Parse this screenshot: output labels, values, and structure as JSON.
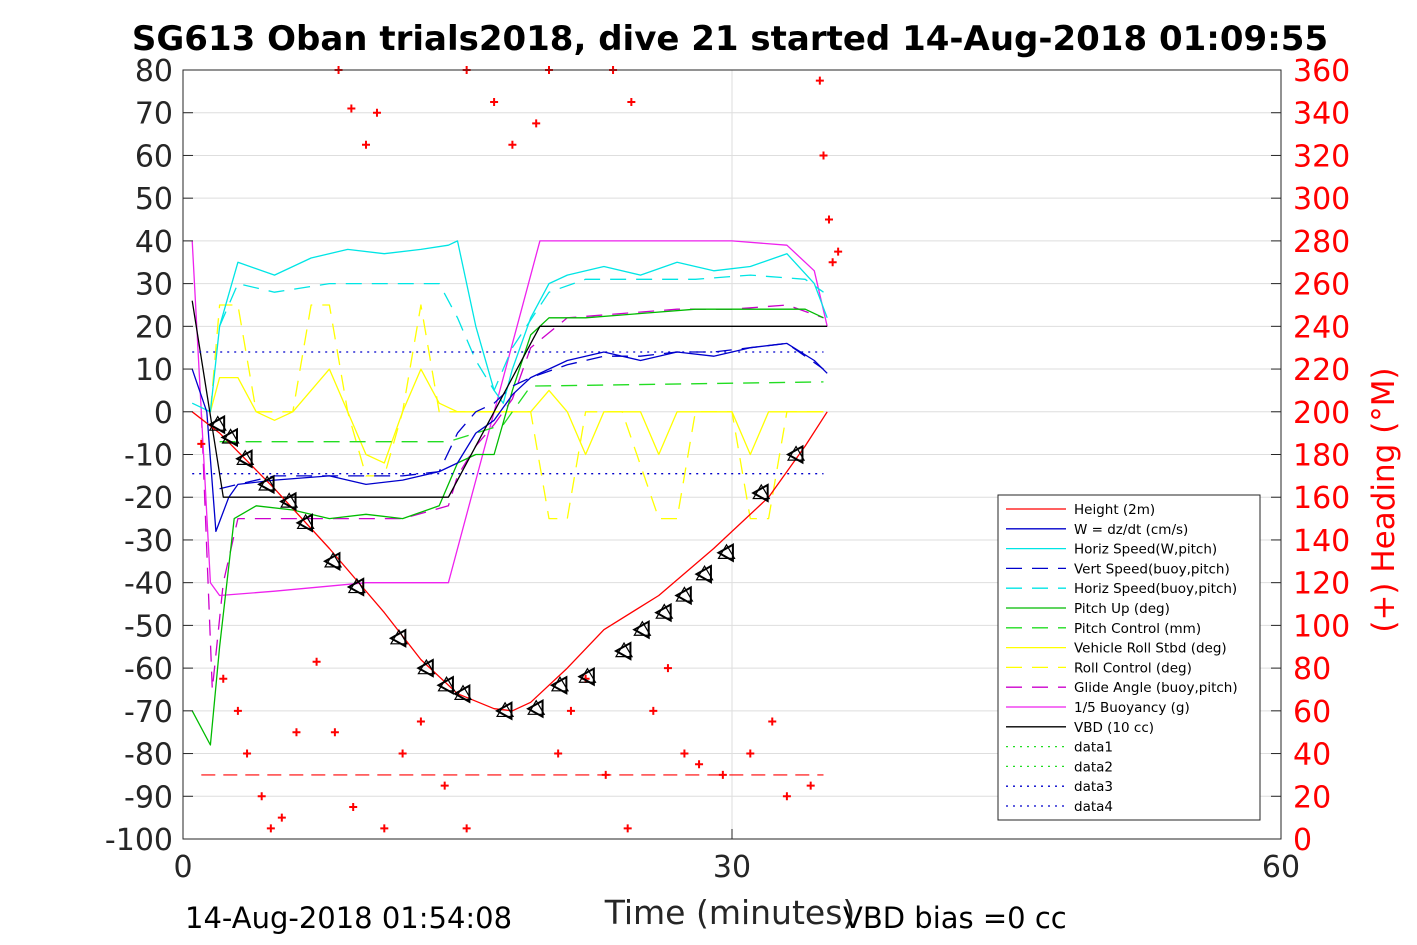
{
  "chart_data": {
    "type": "line",
    "title": "SG613 Oban trials2018, dive 21 started 14-Aug-2018 01:09:55",
    "xlabel": "Time (minutes)",
    "ylabel_right": "(+) Heading (°M)",
    "xlim": [
      0,
      60
    ],
    "ylim": [
      -100,
      80
    ],
    "ylim_right": [
      0,
      360
    ],
    "xticks": [
      0,
      30,
      60
    ],
    "yticks": [
      80,
      70,
      60,
      50,
      40,
      30,
      20,
      10,
      0,
      -10,
      -20,
      -30,
      -40,
      -50,
      -60,
      -70,
      -80,
      -90,
      -100
    ],
    "yticks_right": [
      360,
      340,
      320,
      300,
      280,
      260,
      240,
      220,
      200,
      180,
      160,
      140,
      120,
      100,
      80,
      60,
      40,
      20,
      0
    ],
    "grid": true,
    "legend_position": "bottom-right",
    "footer_left": "14-Aug-2018 01:54:08",
    "footer_right": "VBD bias =0 cc",
    "colors": {
      "height": "#ff0000",
      "w": "#0000cc",
      "horiz": "#00e5e5",
      "pitch": "#00bb00",
      "pitch_control": "#22dd22",
      "roll": "#ffff00",
      "glide": "#cc00cc",
      "buoyancy": "#ee22ee",
      "vbd": "#000000",
      "heading": "#ff0000",
      "axis": "#262626",
      "grid": "#dedede"
    },
    "series": [
      {
        "name": "Height (2m)",
        "style": "solid",
        "color": "#ff0000",
        "x": [
          0.5,
          2,
          5,
          8,
          11,
          13,
          15,
          17,
          18,
          19,
          21,
          23,
          26,
          29,
          32,
          34,
          35.2
        ],
        "y": [
          0,
          -5,
          -18,
          -32,
          -47,
          -58,
          -66,
          -69.5,
          -70,
          -68,
          -60,
          -51,
          -43,
          -32,
          -20,
          -8,
          0
        ]
      },
      {
        "name": "W = dz/dt (cm/s)",
        "style": "solid",
        "color": "#0000cc",
        "x": [
          0.5,
          1.3,
          1.8,
          2.5,
          3,
          5,
          8,
          10,
          12,
          14,
          15,
          16,
          17,
          18,
          19,
          21,
          23,
          25,
          27,
          29,
          31,
          33,
          34.5,
          35.2
        ],
        "y": [
          10,
          0,
          -28,
          -20,
          -17,
          -16,
          -15,
          -17,
          -16,
          -14,
          -12,
          -5,
          -2,
          4,
          8,
          12,
          14,
          12,
          14,
          13,
          15,
          16,
          12,
          9
        ]
      },
      {
        "name": "Horiz Speed(W,pitch)",
        "style": "solid",
        "color": "#00e5e5",
        "x": [
          0.5,
          1.5,
          2,
          3,
          5,
          7,
          9,
          11,
          13,
          14.5,
          15,
          16,
          17,
          17.5,
          18,
          19,
          20,
          21,
          23,
          25,
          27,
          29,
          31,
          33,
          34.5,
          35.2
        ],
        "y": [
          2,
          0,
          20,
          35,
          32,
          36,
          38,
          37,
          38,
          39,
          40,
          20,
          5,
          2,
          10,
          22,
          30,
          32,
          34,
          32,
          35,
          33,
          34,
          37,
          30,
          22
        ]
      },
      {
        "name": "Vert Speed(buoy,pitch)",
        "style": "dash",
        "color": "#0000cc",
        "x": [
          2,
          3,
          5,
          8,
          10,
          12,
          14,
          15,
          16,
          17,
          18,
          19,
          21,
          23,
          25,
          27,
          29,
          31,
          33,
          35
        ],
        "y": [
          -18,
          -17,
          -15,
          -15,
          -15,
          -15,
          -14,
          -5,
          0,
          2,
          6,
          8,
          11,
          13,
          13,
          14,
          14,
          15,
          16,
          10
        ]
      },
      {
        "name": "Horiz Speed(buoy,pitch)",
        "style": "dash",
        "color": "#00e5e5",
        "x": [
          2,
          3,
          5,
          8,
          10,
          12,
          14,
          15,
          16,
          17,
          18,
          20,
          22,
          25,
          28,
          31,
          34,
          35
        ],
        "y": [
          20,
          30,
          28,
          30,
          30,
          30,
          30,
          22,
          12,
          5,
          15,
          28,
          31,
          31,
          31,
          32,
          31,
          28
        ]
      },
      {
        "name": "Pitch Up (deg)",
        "style": "solid",
        "color": "#00bb00",
        "x": [
          0.5,
          1.5,
          2,
          2.8,
          4,
          6,
          8,
          10,
          12,
          14,
          15,
          16,
          17,
          18,
          19,
          20,
          22,
          25,
          28,
          31,
          34,
          35
        ],
        "y": [
          -70,
          -78,
          -55,
          -25,
          -22,
          -23,
          -25,
          -24,
          -25,
          -22,
          -12,
          -10,
          -10,
          5,
          18,
          22,
          22,
          23,
          24,
          24,
          24,
          22
        ]
      },
      {
        "name": "Pitch Control (mm)",
        "style": "dash",
        "color": "#22dd22",
        "x": [
          2,
          14.5,
          17.5,
          19,
          35
        ],
        "y": [
          -7,
          -7,
          -3,
          6,
          7
        ]
      },
      {
        "name": "Vehicle Roll Stbd (deg)",
        "style": "solid",
        "color": "#ffff00",
        "x": [
          1.5,
          2,
          3,
          4,
          5,
          6,
          7,
          8,
          9,
          10,
          11,
          12,
          13,
          14,
          15,
          19,
          20,
          21,
          22,
          23,
          24,
          25,
          26,
          27,
          28,
          29,
          30,
          31,
          32,
          33,
          34,
          35
        ],
        "y": [
          0,
          8,
          8,
          0,
          -2,
          0,
          5,
          10,
          0,
          -10,
          -12,
          0,
          10,
          2,
          0,
          0,
          5,
          0,
          -10,
          0,
          0,
          0,
          -10,
          0,
          0,
          0,
          0,
          -10,
          0,
          0,
          0,
          0
        ]
      },
      {
        "name": "Roll Control (deg)",
        "style": "dash",
        "color": "#ffff00",
        "x": [
          1.5,
          2,
          3,
          4,
          6,
          7,
          8,
          9,
          10,
          11,
          12,
          13,
          14,
          15,
          19,
          20,
          21,
          22,
          23,
          24,
          26,
          27,
          28,
          30,
          31,
          32,
          33,
          34,
          35
        ],
        "y": [
          0,
          25,
          25,
          0,
          0,
          25,
          25,
          0,
          -15,
          -15,
          0,
          25,
          0,
          0,
          0,
          -25,
          -25,
          0,
          0,
          0,
          -25,
          -25,
          0,
          0,
          -25,
          -25,
          0,
          0,
          0
        ]
      },
      {
        "name": "Glide Angle (buoy,pitch)",
        "style": "dash",
        "color": "#cc00cc",
        "x": [
          1,
          1.6,
          2.2,
          3,
          6,
          9,
          12,
          14.5,
          15,
          16,
          17,
          18,
          19,
          21,
          24,
          27,
          30,
          33,
          35
        ],
        "y": [
          0,
          -65,
          -40,
          -25,
          -25,
          -25,
          -25,
          -22,
          -15,
          -8,
          -3,
          3,
          15,
          22,
          23,
          24,
          24,
          25,
          22
        ]
      },
      {
        "name": "1/5 Buoyancy (g)",
        "style": "solid",
        "color": "#ee22ee",
        "x": [
          0.5,
          1.5,
          2,
          5,
          10,
          14.5,
          19.5,
          25,
          30,
          33,
          34.5,
          35.2
        ],
        "y": [
          40,
          -40,
          -43,
          -42,
          -40,
          -40,
          40,
          40,
          40,
          39,
          33,
          20
        ]
      },
      {
        "name": "VBD (10 cc)",
        "style": "solid",
        "color": "#000000",
        "x": [
          0.5,
          2.2,
          14.5,
          19.5,
          35.2
        ],
        "y": [
          26,
          -20,
          -20,
          20,
          20
        ]
      },
      {
        "name": "data1",
        "style": "dot",
        "color": "#22dd22",
        "x": [],
        "y": []
      },
      {
        "name": "data2",
        "style": "dot",
        "color": "#22dd22",
        "x": [],
        "y": []
      },
      {
        "name": "data3",
        "style": "dot",
        "color": "#0000cc",
        "x": [
          0.5,
          35
        ],
        "y": [
          14,
          14
        ]
      },
      {
        "name": "data4",
        "style": "dot",
        "color": "#0000cc",
        "x": [
          0.5,
          35
        ],
        "y": [
          -14.5,
          -14.5
        ]
      }
    ],
    "reference_line": {
      "color": "#ff0000",
      "style": "dash",
      "x": [
        1,
        35
      ],
      "heading": 30
    },
    "heading_points": [
      [
        1,
        185
      ],
      [
        2.2,
        75
      ],
      [
        3,
        60
      ],
      [
        3.5,
        40
      ],
      [
        4.3,
        20
      ],
      [
        4.8,
        5
      ],
      [
        5.4,
        10
      ],
      [
        6.2,
        50
      ],
      [
        7.3,
        83
      ],
      [
        8.3,
        50
      ],
      [
        9.3,
        15
      ],
      [
        11,
        5
      ],
      [
        12,
        40
      ],
      [
        13,
        55
      ],
      [
        14.3,
        25
      ],
      [
        15.5,
        5
      ],
      [
        8.5,
        360
      ],
      [
        9.2,
        342
      ],
      [
        10,
        325
      ],
      [
        10.6,
        340
      ],
      [
        15.5,
        360
      ],
      [
        17,
        345
      ],
      [
        18,
        325
      ],
      [
        19.3,
        335
      ],
      [
        20,
        360
      ],
      [
        23.5,
        360
      ],
      [
        24.5,
        345
      ],
      [
        20.5,
        40
      ],
      [
        21.2,
        60
      ],
      [
        22,
        75
      ],
      [
        23.1,
        30
      ],
      [
        24.3,
        5
      ],
      [
        25.7,
        60
      ],
      [
        26.5,
        80
      ],
      [
        27.4,
        40
      ],
      [
        28.2,
        35
      ],
      [
        29.5,
        30
      ],
      [
        31,
        40
      ],
      [
        32.2,
        55
      ],
      [
        33,
        20
      ],
      [
        34.3,
        25
      ],
      [
        34.8,
        355
      ],
      [
        35,
        320
      ],
      [
        35.3,
        290
      ],
      [
        35.5,
        270
      ],
      [
        35.8,
        275
      ]
    ],
    "markers": [
      [
        1.9,
        -3
      ],
      [
        2.6,
        -6
      ],
      [
        3.4,
        -11
      ],
      [
        4.6,
        -17
      ],
      [
        5.8,
        -21
      ],
      [
        6.7,
        -26
      ],
      [
        8.2,
        -35
      ],
      [
        9.5,
        -41
      ],
      [
        11.8,
        -53
      ],
      [
        13.3,
        -60
      ],
      [
        14.4,
        -64
      ],
      [
        15.3,
        -66
      ],
      [
        17.6,
        -70
      ],
      [
        19.3,
        -69.5
      ],
      [
        20.6,
        -64
      ],
      [
        22.1,
        -62
      ],
      [
        24.1,
        -56
      ],
      [
        25.1,
        -51
      ],
      [
        26.3,
        -47
      ],
      [
        27.4,
        -43
      ],
      [
        28.5,
        -38
      ],
      [
        29.7,
        -33
      ],
      [
        31.6,
        -19
      ],
      [
        33.5,
        -10
      ]
    ]
  }
}
